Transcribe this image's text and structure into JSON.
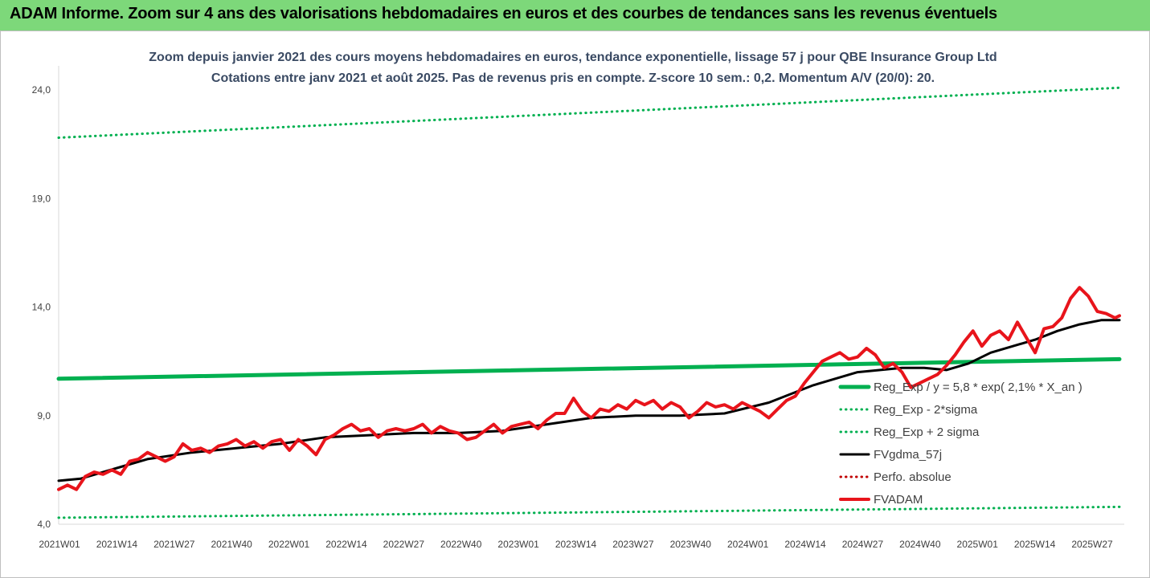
{
  "banner": {
    "title": "ADAM Informe. Zoom sur 4 ans des valorisations hebdomadaires en euros et des courbes de tendances sans les revenus éventuels",
    "background": "#7dd87a"
  },
  "chart_data": {
    "type": "line",
    "title": "Zoom depuis janvier 2021 des cours moyens hebdomadaires en euros, tendance exponentielle, lissage 57 j pour QBE Insurance Group Ltd",
    "subtitle": "Cotations entre janv 2021 et août 2025. Pas de revenus pris en compte. Z-score 10 sem.: 0,2. Momentum A/V (20/0): 20.",
    "xlabel": "",
    "ylabel": "",
    "ylim": [
      4,
      25
    ],
    "yticks": [
      "4,0",
      "9,0",
      "14,0",
      "19,0",
      "24,0"
    ],
    "ytick_values": [
      4,
      9,
      14,
      19,
      24
    ],
    "xticks": [
      "2021W01",
      "2021W14",
      "2021W27",
      "2021W40",
      "2022W01",
      "2022W14",
      "2022W27",
      "2022W40",
      "2023W01",
      "2023W14",
      "2023W27",
      "2023W40",
      "2024W01",
      "2024W14",
      "2024W27",
      "2024W40",
      "2025W01",
      "2025W14",
      "2025W27"
    ],
    "grid": false,
    "legend_position": "bottom-right",
    "series": [
      {
        "name": "Reg_Exp / y = 5,8 * exp( 2,1% * X_an )",
        "style": "solid-thick",
        "color": "#00b050",
        "x": [
          0,
          239
        ],
        "values": [
          10.7,
          11.6
        ]
      },
      {
        "name": "Reg_Exp - 2*sigma",
        "style": "dotted",
        "color": "#00b050",
        "x": [
          0,
          239
        ],
        "values": [
          4.3,
          4.8
        ]
      },
      {
        "name": "Reg_Exp + 2 sigma",
        "style": "dotted",
        "color": "#00b050",
        "x": [
          0,
          239
        ],
        "values": [
          21.8,
          24.1
        ]
      },
      {
        "name": "FVgdma_57j",
        "style": "solid",
        "color": "#000000",
        "x": [
          0,
          5,
          10,
          15,
          20,
          30,
          40,
          50,
          60,
          70,
          80,
          90,
          100,
          110,
          120,
          130,
          140,
          150,
          160,
          170,
          180,
          190,
          195,
          200,
          205,
          210,
          215,
          220,
          225,
          230,
          235,
          239
        ],
        "values": [
          6.0,
          6.1,
          6.4,
          6.7,
          7.0,
          7.3,
          7.5,
          7.7,
          8.0,
          8.1,
          8.2,
          8.2,
          8.3,
          8.6,
          8.9,
          9.0,
          9.0,
          9.1,
          9.6,
          10.4,
          11.0,
          11.2,
          11.2,
          11.1,
          11.4,
          11.9,
          12.2,
          12.5,
          12.9,
          13.2,
          13.4,
          13.4
        ]
      },
      {
        "name": "Perfo. absolue",
        "style": "dotted",
        "color": "#c00000",
        "x": [],
        "values": []
      },
      {
        "name": "FVADAM",
        "style": "solid-thick",
        "color": "#e8141b",
        "x": [
          0,
          2,
          4,
          6,
          8,
          10,
          12,
          14,
          16,
          18,
          20,
          22,
          24,
          26,
          28,
          30,
          32,
          34,
          36,
          38,
          40,
          42,
          44,
          46,
          48,
          50,
          52,
          54,
          56,
          58,
          60,
          62,
          64,
          66,
          68,
          70,
          72,
          74,
          76,
          78,
          80,
          82,
          84,
          86,
          88,
          90,
          92,
          94,
          96,
          98,
          100,
          102,
          104,
          106,
          108,
          110,
          112,
          114,
          116,
          118,
          120,
          122,
          124,
          126,
          128,
          130,
          132,
          134,
          136,
          138,
          140,
          142,
          144,
          146,
          148,
          150,
          152,
          154,
          156,
          158,
          160,
          162,
          164,
          166,
          168,
          170,
          172,
          174,
          176,
          178,
          180,
          182,
          184,
          186,
          188,
          190,
          192,
          194,
          196,
          198,
          200,
          202,
          204,
          206,
          208,
          210,
          212,
          214,
          216,
          218,
          220,
          222,
          224,
          226,
          228,
          230,
          232,
          234,
          236,
          238,
          239
        ],
        "values": [
          5.6,
          5.8,
          5.6,
          6.2,
          6.4,
          6.3,
          6.5,
          6.3,
          6.9,
          7.0,
          7.3,
          7.1,
          6.9,
          7.1,
          7.7,
          7.4,
          7.5,
          7.3,
          7.6,
          7.7,
          7.9,
          7.6,
          7.8,
          7.5,
          7.8,
          7.9,
          7.4,
          7.9,
          7.6,
          7.2,
          7.9,
          8.1,
          8.4,
          8.6,
          8.3,
          8.4,
          8.0,
          8.3,
          8.4,
          8.3,
          8.4,
          8.6,
          8.2,
          8.5,
          8.3,
          8.2,
          7.9,
          8.0,
          8.3,
          8.6,
          8.2,
          8.5,
          8.6,
          8.7,
          8.4,
          8.8,
          9.1,
          9.1,
          9.8,
          9.2,
          8.9,
          9.3,
          9.2,
          9.5,
          9.3,
          9.7,
          9.5,
          9.7,
          9.3,
          9.6,
          9.4,
          8.9,
          9.2,
          9.6,
          9.4,
          9.5,
          9.3,
          9.6,
          9.4,
          9.2,
          8.9,
          9.3,
          9.7,
          9.9,
          10.5,
          11.0,
          11.5,
          11.7,
          11.9,
          11.6,
          11.7,
          12.1,
          11.8,
          11.2,
          11.4,
          11.0,
          10.3,
          10.5,
          10.7,
          10.9,
          11.3,
          11.8,
          12.4,
          12.9,
          12.2,
          12.7,
          12.9,
          12.5,
          13.3,
          12.6,
          11.9,
          13.0,
          13.1,
          13.5,
          14.4,
          14.9,
          14.5,
          13.8,
          13.7,
          13.5,
          13.6
        ]
      }
    ]
  }
}
